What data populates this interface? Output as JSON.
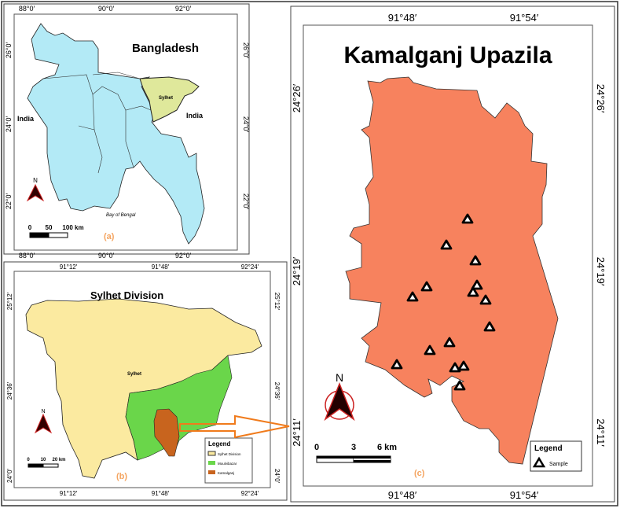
{
  "panel_a": {
    "title": "Bangladesh",
    "label": "(a)",
    "top_ticks": [
      "88°0′",
      "90°0′",
      "92°0′"
    ],
    "bottom_ticks": [
      "88°0′",
      "90°0′",
      "92°0′"
    ],
    "side_ticks": [
      "26°0′",
      "24°0′",
      "22°0′"
    ],
    "places": {
      "india_west": "India",
      "india_east": "India",
      "sylhet": "Sylhet",
      "bay": "Bay of Bengal"
    },
    "north": "N",
    "scale": [
      "0",
      "50",
      "100 km"
    ],
    "colors": {
      "land": "#b3eaf6",
      "sylhet": "#dfe89b"
    }
  },
  "panel_b": {
    "title": "Sylhet Division",
    "label": "(b)",
    "top_ticks": [
      "91°12′",
      "91°48′",
      "92°24′"
    ],
    "bottom_ticks": [
      "91°12′",
      "91°48′",
      "92°24′"
    ],
    "side_ticks": [
      "25°12′",
      "24°36′",
      "24°0′"
    ],
    "place": "Sylhet",
    "north": "N",
    "scale": [
      "0",
      "10",
      "20 km"
    ],
    "legend": {
      "title": "Legend",
      "items": [
        {
          "label": "Sylhet Division",
          "color": "#fbeaa0"
        },
        {
          "label": "Moulvibazar",
          "color": "#6ad64a"
        },
        {
          "label": "Kamalganj",
          "color": "#c8641e"
        }
      ]
    }
  },
  "panel_c": {
    "title": "Kamalganj Upazila",
    "label": "(c)",
    "top_ticks": [
      "91°48′",
      "91°54′"
    ],
    "bottom_ticks": [
      "91°48′",
      "91°54′"
    ],
    "side_ticks": [
      "24°26′",
      "24°19′",
      "24°11′"
    ],
    "north": "N",
    "scale": [
      "0",
      "3",
      "6 km"
    ],
    "legend": {
      "title": "Legend",
      "item": "Sample"
    },
    "colors": {
      "land": "#f7825e",
      "label": "#f4a460"
    }
  }
}
